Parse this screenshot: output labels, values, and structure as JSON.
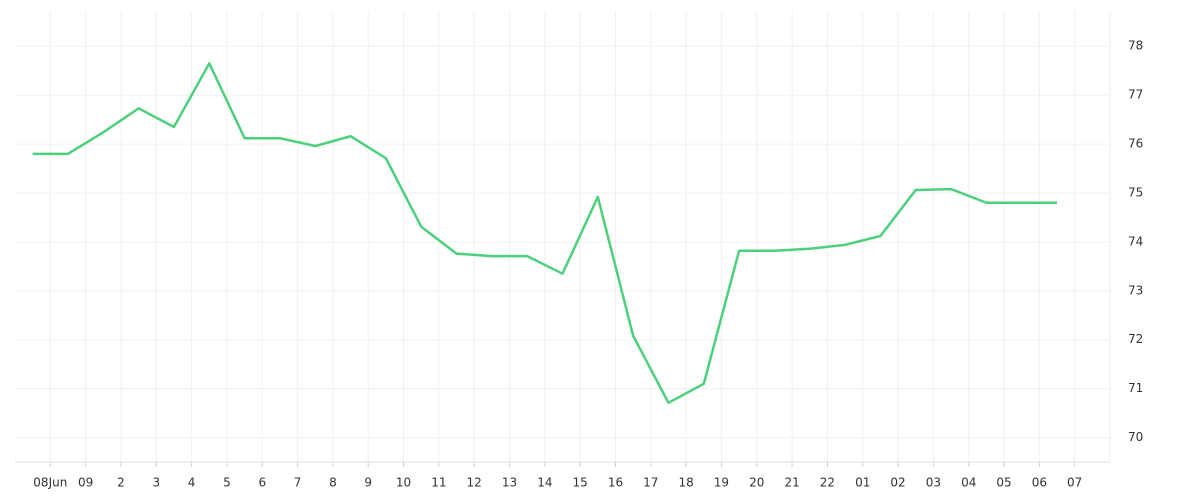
{
  "chart_data": {
    "type": "line",
    "x": [
      -0.5,
      0.5,
      1.5,
      2.5,
      3.5,
      4.5,
      5.5,
      6.5,
      7.5,
      8.5,
      9.5,
      10.5,
      11.5,
      12.5,
      13.5,
      14.5,
      15.5,
      16.5,
      17.5,
      18.5,
      19.5,
      20.5,
      21.5,
      22.5,
      23.5,
      24.5,
      25.5,
      26.5,
      27.5,
      28.5
    ],
    "series": [
      {
        "color": "#4cd07d",
        "values": [
          75.8,
          75.8,
          76.24,
          76.73,
          76.35,
          77.65,
          76.12,
          76.12,
          75.96,
          76.16,
          75.71,
          74.31,
          73.76,
          73.71,
          73.71,
          73.35,
          74.92,
          72.08,
          70.71,
          71.1,
          73.82,
          73.82,
          73.86,
          73.94,
          74.12,
          75.06,
          75.08,
          74.8,
          74.8,
          74.8
        ]
      }
    ],
    "xlim": [
      -1,
      30
    ],
    "xticks": [
      {
        "value": 0,
        "label": "08Jun"
      },
      {
        "value": 1,
        "label": "09"
      },
      2,
      3,
      4,
      5,
      6,
      7,
      8,
      9,
      10,
      11,
      12,
      13,
      14,
      15,
      16,
      17,
      18,
      19,
      20,
      21,
      22,
      {
        "value": 23,
        "label": "01"
      },
      {
        "value": 24,
        "label": "02"
      },
      {
        "value": 25,
        "label": "03"
      },
      {
        "value": 26,
        "label": "04"
      },
      {
        "value": 27,
        "label": "05"
      },
      {
        "value": 28,
        "label": "06"
      },
      {
        "value": 29,
        "label": "07"
      }
    ],
    "ylim": [
      69.5,
      78.7
    ],
    "yticks": [
      70,
      71,
      72,
      73,
      74,
      75,
      76,
      77,
      78
    ],
    "grid": true
  }
}
